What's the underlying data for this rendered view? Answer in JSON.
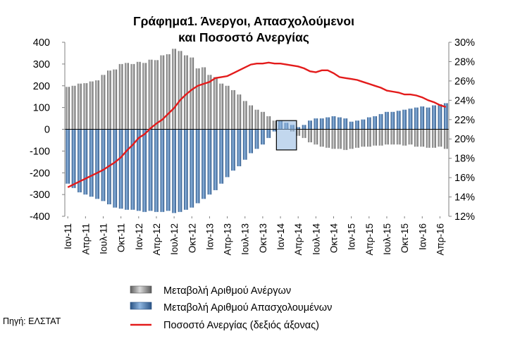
{
  "chart_data": {
    "type": "bar+line",
    "title_line1": "Γράφημα1. Άνεργοι, Απασχολούμενοι",
    "title_line2": "και Ποσοστό Ανεργίας",
    "source": "Πηγή: ΕΛΣΤΑΤ",
    "y_left": {
      "min": -400,
      "max": 400,
      "step": 100,
      "ticks": [
        "400",
        "300",
        "200",
        "100",
        "0",
        "-100",
        "-200",
        "-300",
        "-400"
      ]
    },
    "y_right": {
      "min": 12,
      "max": 30,
      "step": 2,
      "ticks": [
        "30%",
        "28%",
        "26%",
        "24%",
        "22%",
        "20%",
        "18%",
        "16%",
        "14%",
        "12%"
      ]
    },
    "x_tick_labels": [
      "Ιαν-11",
      "Απρ-11",
      "Ιουλ-11",
      "Οκτ-11",
      "Ιαν-12",
      "Απρ-12",
      "Ιουλ-12",
      "Οκτ-12",
      "Ιαν-13",
      "Απρ-13",
      "Ιουλ-13",
      "Οκτ-13",
      "Ιαν-14",
      "Απρ-14",
      "Ιουλ-14",
      "Οκτ-14",
      "Ιαν-15",
      "Απρ-15",
      "Ιουλ-15",
      "Οκτ-15",
      "Ιαν-16",
      "Απρ-16"
    ],
    "series": [
      {
        "name": "Μεταβολή Αριθμού Ανέργων",
        "type": "bar",
        "axis": "left",
        "color": "#8c8c8c",
        "values": [
          195,
          200,
          210,
          212,
          220,
          225,
          250,
          270,
          275,
          300,
          305,
          300,
          310,
          305,
          320,
          318,
          340,
          345,
          370,
          360,
          340,
          330,
          280,
          285,
          250,
          240,
          210,
          200,
          180,
          160,
          130,
          110,
          90,
          80,
          60,
          40,
          20,
          10,
          -10,
          -30,
          -40,
          -60,
          -70,
          -80,
          -85,
          -90,
          -90,
          -95,
          -90,
          -85,
          -80,
          -80,
          -75,
          -75,
          -70,
          -70,
          -70,
          -75,
          -70,
          -80,
          -80,
          -85,
          -85,
          -80,
          -90
        ]
      },
      {
        "name": "Μεταβολή Αριθμού Απασχολουμένων",
        "type": "bar",
        "axis": "left",
        "color": "#3d6a9e",
        "values": [
          -250,
          -270,
          -290,
          -300,
          -310,
          -320,
          -330,
          -345,
          -360,
          -365,
          -370,
          -370,
          -375,
          -380,
          -375,
          -380,
          -380,
          -375,
          -385,
          -380,
          -370,
          -360,
          -340,
          -320,
          -300,
          -280,
          -250,
          -220,
          -190,
          -170,
          -140,
          -110,
          -90,
          -70,
          -40,
          -10,
          40,
          30,
          20,
          10,
          20,
          40,
          50,
          50,
          55,
          60,
          55,
          50,
          35,
          40,
          45,
          55,
          60,
          70,
          80,
          80,
          85,
          90,
          95,
          100,
          105,
          100,
          110,
          115,
          120
        ]
      },
      {
        "name": "Ποσοστό Ανεργίας (δεξιός άξονας)",
        "type": "line",
        "axis": "right",
        "color": "#e31b1b",
        "values": [
          15.0,
          15.3,
          15.6,
          15.9,
          16.2,
          16.5,
          16.8,
          17.2,
          17.6,
          18.1,
          18.8,
          19.4,
          20.1,
          20.5,
          21.1,
          21.6,
          22.0,
          22.6,
          23.2,
          24.0,
          24.6,
          25.1,
          25.5,
          25.7,
          25.9,
          26.3,
          26.4,
          26.5,
          26.8,
          27.1,
          27.4,
          27.7,
          27.8,
          27.8,
          27.9,
          27.8,
          27.8,
          27.7,
          27.6,
          27.5,
          27.3,
          27.0,
          26.9,
          27.1,
          27.1,
          26.8,
          26.4,
          26.3,
          26.2,
          26.1,
          25.9,
          25.7,
          25.5,
          25.3,
          25.0,
          24.9,
          24.8,
          24.6,
          24.6,
          24.5,
          24.3,
          24.0,
          23.8,
          23.5,
          23.3
        ]
      }
    ],
    "legend": [
      {
        "label": "Μεταβολή Αριθμού Ανέργων",
        "swatch": "gray-bar"
      },
      {
        "label": "Μεταβολή Αριθμού Απασχολουμένων",
        "swatch": "blue-bar"
      },
      {
        "label": "Ποσοστό Ανεργίας (δεξιός άξονας)",
        "swatch": "red-line"
      }
    ]
  }
}
